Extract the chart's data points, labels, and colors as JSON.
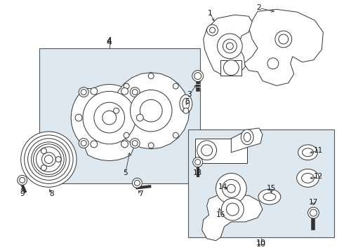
{
  "bg_color": "#ffffff",
  "box_bg": "#dde8f0",
  "fig_width": 4.9,
  "fig_height": 3.6,
  "dpi": 100,
  "lc": "#333333",
  "lw": 0.7,
  "label_fs": 7.5
}
